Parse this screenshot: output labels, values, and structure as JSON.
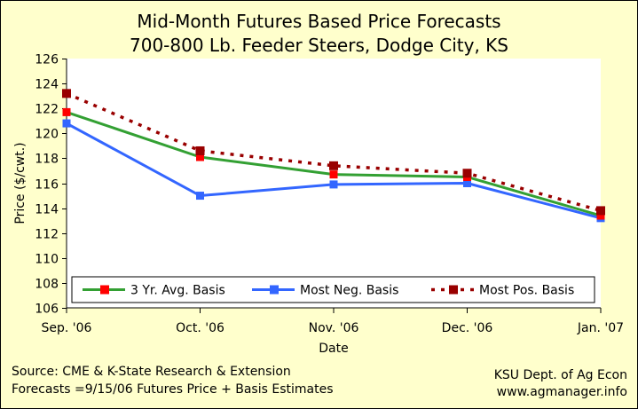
{
  "chart_data": {
    "type": "line",
    "title": "Mid-Month Futures Based Price Forecasts",
    "subtitle": "700-800 Lb. Feeder Steers, Dodge City, KS",
    "xlabel": "Date",
    "ylabel": "Price ($/cwt.)",
    "categories": [
      "Sep. '06",
      "Oct. '06",
      "Nov. '06",
      "Dec. '06",
      "Jan. '07"
    ],
    "ylim": [
      106,
      126
    ],
    "yticks": [
      106,
      108,
      110,
      112,
      114,
      116,
      118,
      120,
      122,
      124,
      126
    ],
    "grid": false,
    "legend_position": "bottom-inside",
    "series": [
      {
        "name": "3 Yr. Avg. Basis",
        "values": [
          121.7,
          118.1,
          116.7,
          116.5,
          113.4
        ],
        "line_color": "#33a033",
        "marker_color": "#ff0000",
        "style": "solid"
      },
      {
        "name": "Most Neg. Basis",
        "values": [
          120.8,
          115.0,
          115.9,
          116.0,
          113.2
        ],
        "line_color": "#3366ff",
        "marker_color": "#3366ff",
        "style": "solid"
      },
      {
        "name": "Most Pos. Basis",
        "values": [
          123.2,
          118.6,
          117.4,
          116.8,
          113.8
        ],
        "line_color": "#990000",
        "marker_color": "#990000",
        "style": "dashed"
      }
    ]
  },
  "footer": {
    "source_line1": "Source:  CME & K-State Research & Extension",
    "source_line2": "Forecasts =9/15/06 Futures Price + Basis Estimates",
    "credit_line1": "KSU Dept. of Ag Econ",
    "credit_line2": "www.agmanager.info"
  }
}
